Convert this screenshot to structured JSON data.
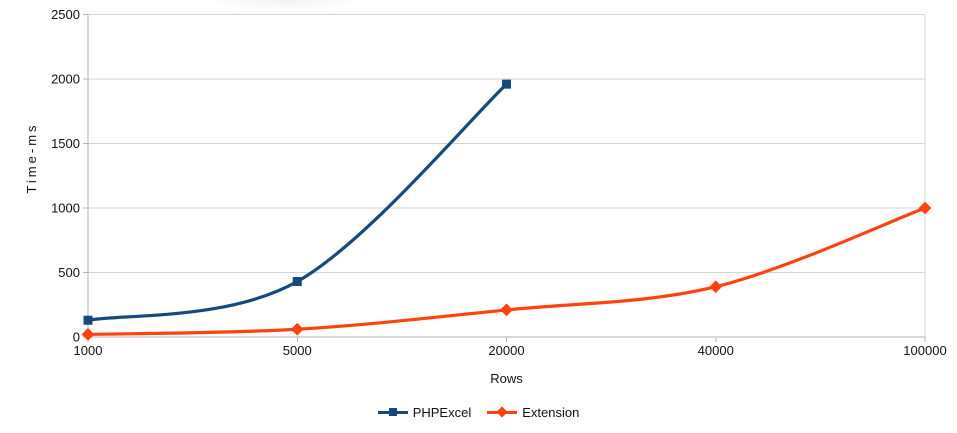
{
  "chart_data": {
    "type": "line",
    "title": "",
    "xlabel": "Rows",
    "ylabel": "Time-ms",
    "categories": [
      "1000",
      "5000",
      "20000",
      "40000",
      "100000"
    ],
    "y_ticks": [
      0,
      500,
      1000,
      1500,
      2000,
      2500
    ],
    "ylim": [
      0,
      2500
    ],
    "grid": "horizontal-only",
    "legend_position": "bottom-center",
    "series": [
      {
        "name": "PHPExcel",
        "color": "#17497c",
        "marker": "square",
        "values": [
          130,
          430,
          1960,
          null,
          null
        ]
      },
      {
        "name": "Extension",
        "color": "#ff420e",
        "marker": "diamond",
        "values": [
          20,
          60,
          210,
          390,
          1000
        ]
      }
    ],
    "colors": {
      "background": "#ffffff",
      "gridline": "#d3d3d3",
      "axis": "#b3b3b3",
      "text": "#111111"
    }
  }
}
